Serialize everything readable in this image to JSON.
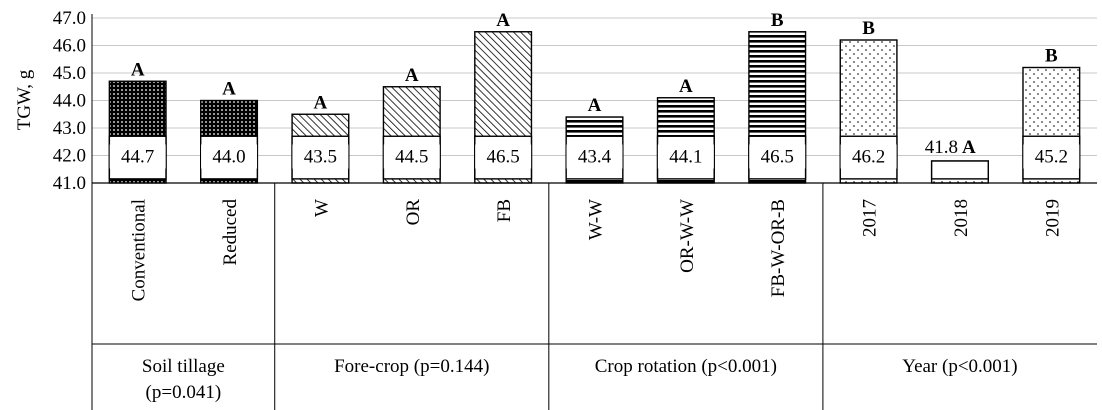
{
  "chart_data": {
    "type": "bar",
    "title": "",
    "xlabel": "",
    "ylabel": "TGW, g",
    "ylim": [
      41.0,
      47.0
    ],
    "yticks": [
      "41.0",
      "42.0",
      "43.0",
      "44.0",
      "45.0",
      "46.0",
      "47.0"
    ],
    "grid": true,
    "groups": [
      {
        "label": "Soil tillage (p=0.041)",
        "bars": [
          {
            "category": "Conventional",
            "value": 44.7,
            "value_label": "44.7",
            "letter": "A",
            "pattern": "dense-dots"
          },
          {
            "category": "Reduced",
            "value": 44.0,
            "value_label": "44.0",
            "letter": "A",
            "pattern": "dense-dots"
          }
        ]
      },
      {
        "label": "Fore-crop (p=0.144)",
        "bars": [
          {
            "category": "W",
            "value": 43.5,
            "value_label": "43.5",
            "letter": "A",
            "pattern": "diagonal"
          },
          {
            "category": "OR",
            "value": 44.5,
            "value_label": "44.5",
            "letter": "A",
            "pattern": "diagonal"
          },
          {
            "category": "FB",
            "value": 46.5,
            "value_label": "46.5",
            "letter": "A",
            "pattern": "diagonal"
          }
        ]
      },
      {
        "label": "Crop rotation (p<0.001)",
        "bars": [
          {
            "category": "W-W",
            "value": 43.4,
            "value_label": "43.4",
            "letter": "A",
            "pattern": "horizontal"
          },
          {
            "category": "OR-W-W",
            "value": 44.1,
            "value_label": "44.1",
            "letter": "A",
            "pattern": "horizontal"
          },
          {
            "category": "FB-W-OR-B",
            "value": 46.5,
            "value_label": "46.5",
            "letter": "B",
            "pattern": "horizontal"
          }
        ]
      },
      {
        "label": "Year (p<0.001)",
        "bars": [
          {
            "category": "2017",
            "value": 46.2,
            "value_label": "46.2",
            "letter": "B",
            "pattern": "sparse-dots"
          },
          {
            "category": "2018",
            "value": 41.8,
            "value_label": "41.8",
            "letter": "A",
            "pattern": "sparse-dots"
          },
          {
            "category": "2019",
            "value": 45.2,
            "value_label": "45.2",
            "letter": "B",
            "pattern": "sparse-dots"
          }
        ]
      }
    ]
  }
}
